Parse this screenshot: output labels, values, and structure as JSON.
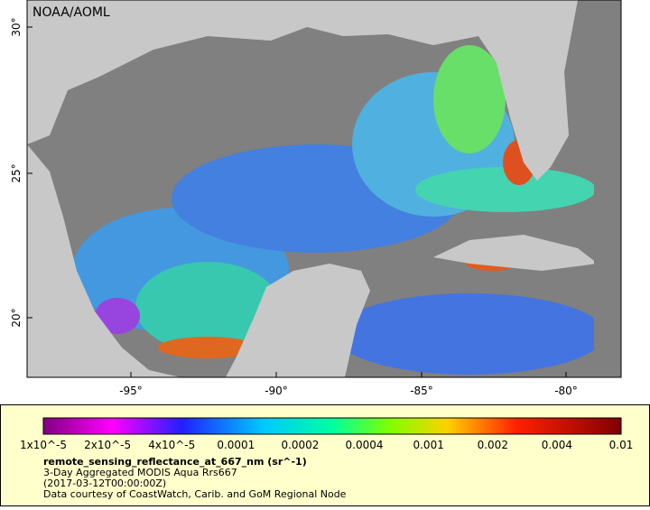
{
  "map": {
    "credit": "NOAA/AOML",
    "lat_ticks": [
      "30°",
      "25°",
      "20°"
    ],
    "lon_ticks": [
      "-95°",
      "-90°",
      "-85°",
      "-80°"
    ]
  },
  "colorbar": {
    "ticks": [
      "1x10^-5",
      "2x10^-5",
      "4x10^-5",
      "0.0001",
      "0.0002",
      "0.0004",
      "0.001",
      "0.002",
      "0.004",
      "0.01"
    ],
    "title": "remote_sensing_reflectance_at_667_nm (sr^-1)",
    "subtitle": "3-Day Aggregated MODIS Aqua Rrs667",
    "time": "(2017-03-12T00:00:00Z)",
    "source": "Data courtesy of CoastWatch, Carib. and GoM Regional Node"
  }
}
